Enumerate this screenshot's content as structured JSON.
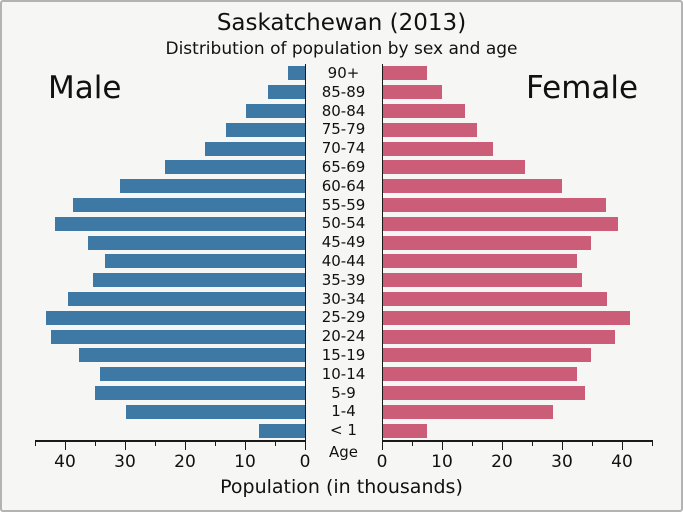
{
  "title": "Saskatchewan (2013)",
  "subtitle": "Distribution of population by sex and age",
  "male_label": "Male",
  "female_label": "Female",
  "age_axis_label": "Age",
  "x_axis_label": "Population (in thousands)",
  "colors": {
    "male_bar": "#3e79a6",
    "female_bar": "#cb5d79",
    "background": "#f6f6f5",
    "frame_border": "#b3b3b3",
    "axis": "#1a1a1a",
    "text": "#111111"
  },
  "chart_data": {
    "type": "bar",
    "variant": "population-pyramid",
    "title": "Saskatchewan (2013)",
    "subtitle": "Distribution of population by sex and age",
    "categories": [
      "90+",
      "85-89",
      "80-84",
      "75-79",
      "70-74",
      "65-69",
      "60-64",
      "55-59",
      "50-54",
      "45-49",
      "40-44",
      "35-39",
      "30-34",
      "25-29",
      "20-24",
      "15-19",
      "10-14",
      "5-9",
      "1-4",
      "< 1"
    ],
    "series": [
      {
        "name": "Male",
        "side": "left",
        "color": "#3e79a6",
        "values": [
          2.9,
          6.1,
          9.9,
          13.1,
          16.6,
          23.3,
          30.8,
          38.6,
          41.7,
          36.1,
          33.4,
          35.4,
          39.5,
          43.2,
          42.4,
          37.7,
          34.2,
          35.0,
          29.8,
          7.7
        ]
      },
      {
        "name": "Female",
        "side": "right",
        "color": "#cb5d79",
        "values": [
          7.3,
          9.9,
          13.7,
          15.7,
          18.4,
          23.6,
          29.9,
          37.2,
          39.2,
          34.7,
          32.3,
          33.2,
          37.4,
          41.2,
          38.6,
          34.7,
          32.3,
          33.6,
          28.3,
          7.3
        ]
      }
    ],
    "xlabel": "Population (in thousands)",
    "center_axis_label": "Age",
    "xlim": [
      0,
      45
    ],
    "x_major_ticks": [
      0,
      10,
      20,
      30,
      40
    ],
    "x_minor_step": 5,
    "grid": false,
    "legend_position": "none"
  }
}
